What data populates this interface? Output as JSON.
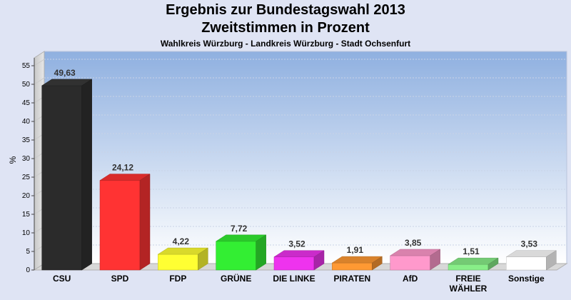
{
  "chart_data": {
    "type": "bar",
    "title": "Ergebnis zur Bundestagswahl 2013",
    "subtitle": "Zweitstimmen in Prozent",
    "subsubtitle": "Wahlkreis Würzburg - Landkreis Würzburg - Stadt Ochsenfurt",
    "ylabel": "%",
    "xlabel": "",
    "ylim": [
      0,
      57
    ],
    "yticks": [
      0,
      5,
      10,
      15,
      20,
      25,
      30,
      35,
      40,
      45,
      50,
      55
    ],
    "grid": true,
    "categories": [
      "CSU",
      "SPD",
      "FDP",
      "GRÜNE",
      "DIE LINKE",
      "PIRATEN",
      "AfD",
      "FREIE WÄHLER",
      "Sonstige"
    ],
    "category_lines": [
      [
        "CSU"
      ],
      [
        "SPD"
      ],
      [
        "FDP"
      ],
      [
        "GRÜNE"
      ],
      [
        "DIE LINKE"
      ],
      [
        "PIRATEN"
      ],
      [
        "AfD"
      ],
      [
        "FREIE",
        "WÄHLER"
      ],
      [
        "Sonstige"
      ]
    ],
    "values": [
      49.63,
      24.12,
      4.22,
      7.72,
      3.52,
      1.91,
      3.85,
      1.51,
      3.53
    ],
    "value_labels": [
      "49,63",
      "24,12",
      "4,22",
      "7,72",
      "3,52",
      "1,91",
      "3,85",
      "1,51",
      "3,53"
    ],
    "colors": [
      "#2b2b2b",
      "#ff3333",
      "#ffff33",
      "#33ee33",
      "#ee33ee",
      "#ff9933",
      "#ff99cc",
      "#88ee88",
      "#ffffff"
    ]
  }
}
